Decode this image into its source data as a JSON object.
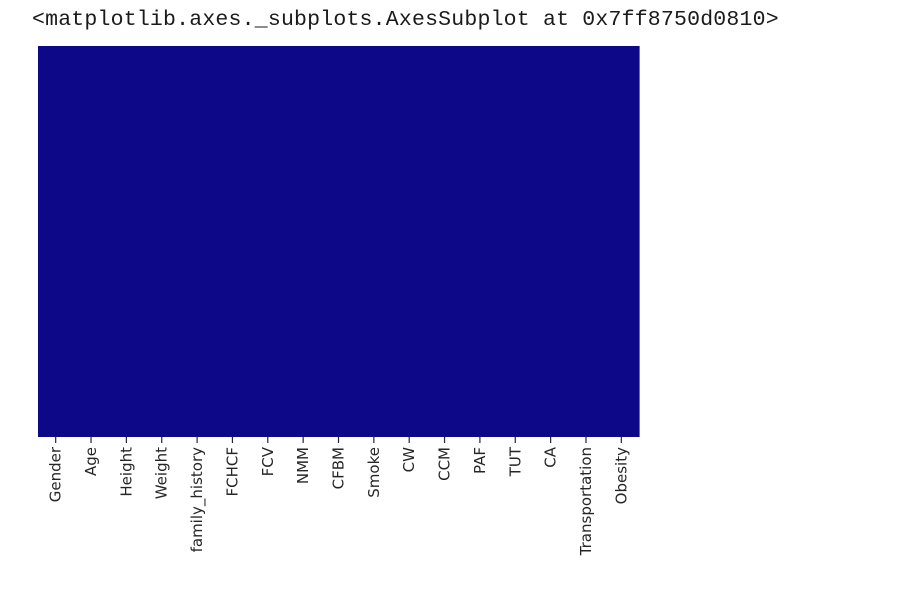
{
  "output_repr": "<matplotlib.axes._subplots.AxesSubplot at 0x7ff8750d0810>",
  "chart_data": {
    "type": "heatmap",
    "title": "",
    "xlabel": "",
    "ylabel": "",
    "categories": [
      "Gender",
      "Age",
      "Height",
      "Weight",
      "family_history",
      "FCHCF",
      "FCV",
      "NMM",
      "CFBM",
      "Smoke",
      "CW",
      "CCM",
      "PAF",
      "TUT",
      "CA",
      "Transportation",
      "Obesity"
    ],
    "values": [
      0,
      0,
      0,
      0,
      0,
      0,
      0,
      0,
      0,
      0,
      0,
      0,
      0,
      0,
      0,
      0,
      0
    ],
    "colorbar": false,
    "y_ticks": false,
    "colormap": "plasma",
    "cell_color": "#0d0887"
  }
}
